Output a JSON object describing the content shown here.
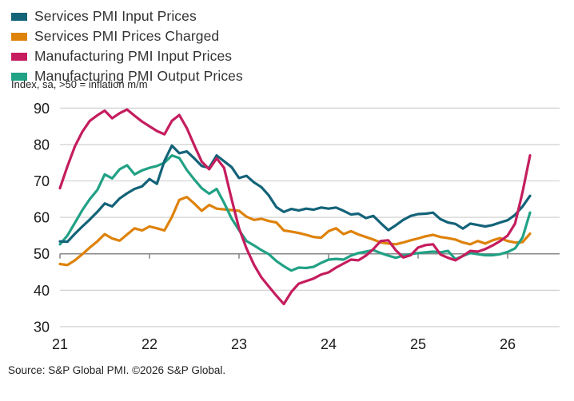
{
  "subtitle": "Index, sa, >50 = inflation m/m",
  "source": "Source: S&P Global PMI. ©2026 S&P Global.",
  "chart_data": {
    "type": "line",
    "title": "",
    "subtitle": "Index, sa, >50 = inflation m/m",
    "x_unit": "month",
    "x_start": "2021-01",
    "x_end": "2026-04",
    "x_tick_labels": [
      "21",
      "22",
      "23",
      "24",
      "25",
      "26"
    ],
    "ylim": [
      30,
      90
    ],
    "yticks": [
      30,
      40,
      50,
      60,
      70,
      80,
      90
    ],
    "baseline_value": 50,
    "grid_color": "#cccccc",
    "baseline_color": "#8a8a8a",
    "legend_position": "top-left",
    "series": [
      {
        "name": "Services PMI Input Prices",
        "color": "#136379",
        "values": [
          53.4,
          53.3,
          55.5,
          57.5,
          59.4,
          61.5,
          63.8,
          63.0,
          65.2,
          66.6,
          67.8,
          68.5,
          70.5,
          69.2,
          75.5,
          79.7,
          77.6,
          78.1,
          76.2,
          74.1,
          73.6,
          77.0,
          75.4,
          73.8,
          70.8,
          71.4,
          69.6,
          68.3,
          66.0,
          62.8,
          61.5,
          62.3,
          61.9,
          62.4,
          62.1,
          62.7,
          62.4,
          62.7,
          61.8,
          60.8,
          61.0,
          59.8,
          60.4,
          58.4,
          56.5,
          57.8,
          59.3,
          60.4,
          60.9,
          61.0,
          61.3,
          59.5,
          58.6,
          58.2,
          56.9,
          58.3,
          57.9,
          57.5,
          57.9,
          58.6,
          59.2,
          60.7,
          63.0,
          65.9
        ]
      },
      {
        "name": "Services PMI Prices Charged",
        "color": "#DE820A",
        "values": [
          47.2,
          46.9,
          48.2,
          49.9,
          51.7,
          53.4,
          55.4,
          54.2,
          53.6,
          55.3,
          57.0,
          56.4,
          57.5,
          57.0,
          56.4,
          60.1,
          64.8,
          65.6,
          63.8,
          61.8,
          63.4,
          62.4,
          62.2,
          62.0,
          61.8,
          60.2,
          59.3,
          59.6,
          59.0,
          58.6,
          56.4,
          56.1,
          55.7,
          55.2,
          54.6,
          54.4,
          56.2,
          57.0,
          55.4,
          56.2,
          55.3,
          54.6,
          53.9,
          53.1,
          52.8,
          52.6,
          53.1,
          53.7,
          54.2,
          54.8,
          55.2,
          54.6,
          54.3,
          53.9,
          53.1,
          52.6,
          53.5,
          52.8,
          53.7,
          54.3,
          53.5,
          53.1,
          53.2,
          55.5
        ]
      },
      {
        "name": "Manufacturing PMI Input Prices",
        "color": "#C51D5E",
        "values": [
          68.0,
          74.0,
          79.5,
          83.5,
          86.5,
          88.0,
          89.3,
          87.2,
          88.6,
          89.6,
          87.9,
          86.3,
          85.0,
          83.7,
          82.8,
          86.5,
          88.1,
          84.5,
          79.8,
          75.3,
          73.2,
          76.2,
          73.6,
          65.0,
          57.0,
          51.5,
          47.0,
          43.5,
          41.0,
          38.5,
          36.2,
          39.5,
          41.8,
          42.5,
          43.2,
          44.3,
          44.9,
          46.2,
          47.3,
          48.4,
          48.2,
          49.5,
          51.3,
          53.5,
          53.7,
          51.0,
          49.0,
          49.6,
          51.7,
          52.4,
          52.6,
          49.8,
          48.9,
          48.2,
          49.4,
          50.8,
          50.6,
          51.3,
          52.3,
          53.5,
          55.0,
          58.3,
          67.0,
          77.0
        ]
      },
      {
        "name": "Manufacturing PMI Output Prices",
        "color": "#21A185",
        "values": [
          52.6,
          55.0,
          58.5,
          62.0,
          65.0,
          67.5,
          71.8,
          70.7,
          73.2,
          74.3,
          71.8,
          72.9,
          73.6,
          74.1,
          75.0,
          77.0,
          76.3,
          73.0,
          70.4,
          68.0,
          66.5,
          67.8,
          64.0,
          59.7,
          56.5,
          53.5,
          52.3,
          51.0,
          49.9,
          48.0,
          46.6,
          45.4,
          46.2,
          46.1,
          46.4,
          47.5,
          48.4,
          48.6,
          48.4,
          49.5,
          50.2,
          50.6,
          51.0,
          50.2,
          49.5,
          48.9,
          49.5,
          49.9,
          50.2,
          50.4,
          50.6,
          50.4,
          50.8,
          48.5,
          49.4,
          50.2,
          49.9,
          49.6,
          49.6,
          49.9,
          50.5,
          51.5,
          54.5,
          61.3
        ]
      }
    ]
  }
}
